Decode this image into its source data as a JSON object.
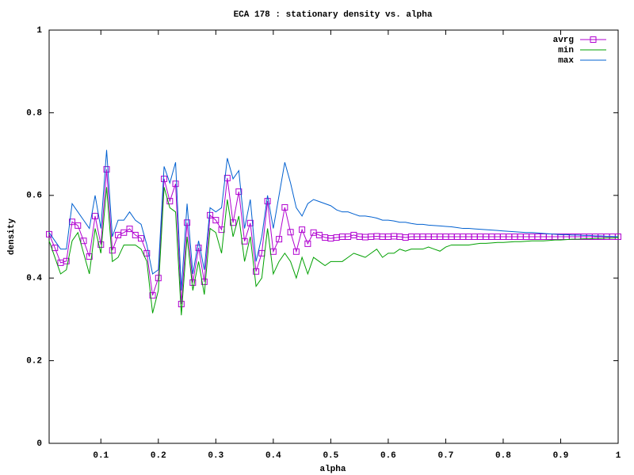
{
  "chart_data": {
    "type": "line",
    "title": "ECA 178 : stationary density vs. alpha",
    "xlabel": "alpha",
    "ylabel": "density",
    "x": [
      0.01,
      0.02,
      0.03,
      0.04,
      0.05,
      0.06,
      0.07,
      0.08,
      0.09,
      0.1,
      0.11,
      0.12,
      0.13,
      0.14,
      0.15,
      0.16,
      0.17,
      0.18,
      0.19,
      0.2,
      0.21,
      0.22,
      0.23,
      0.24,
      0.25,
      0.26,
      0.27,
      0.28,
      0.29,
      0.3,
      0.31,
      0.32,
      0.33,
      0.34,
      0.35,
      0.36,
      0.37,
      0.38,
      0.39,
      0.4,
      0.41,
      0.42,
      0.43,
      0.44,
      0.45,
      0.46,
      0.47,
      0.48,
      0.49,
      0.5,
      0.51,
      0.52,
      0.53,
      0.54,
      0.55,
      0.56,
      0.57,
      0.58,
      0.59,
      0.6,
      0.61,
      0.62,
      0.63,
      0.64,
      0.65,
      0.66,
      0.67,
      0.68,
      0.69,
      0.7,
      0.71,
      0.72,
      0.73,
      0.74,
      0.75,
      0.76,
      0.77,
      0.78,
      0.79,
      0.8,
      0.81,
      0.82,
      0.83,
      0.84,
      0.85,
      0.86,
      0.87,
      0.88,
      0.89,
      0.9,
      0.91,
      0.92,
      0.93,
      0.94,
      0.95,
      0.96,
      0.97,
      0.98,
      0.99,
      1
    ],
    "series": [
      {
        "name": "avrg",
        "color": "#b000d0",
        "marker": "square",
        "values": [
          0.506,
          0.473,
          0.437,
          0.441,
          0.536,
          0.527,
          0.49,
          0.452,
          0.55,
          0.481,
          0.663,
          0.467,
          0.504,
          0.51,
          0.519,
          0.504,
          0.496,
          0.46,
          0.358,
          0.4,
          0.64,
          0.586,
          0.628,
          0.337,
          0.534,
          0.389,
          0.473,
          0.391,
          0.552,
          0.54,
          0.517,
          0.642,
          0.534,
          0.609,
          0.489,
          0.533,
          0.416,
          0.46,
          0.586,
          0.464,
          0.494,
          0.571,
          0.511,
          0.464,
          0.517,
          0.483,
          0.51,
          0.504,
          0.498,
          0.496,
          0.498,
          0.5,
          0.5,
          0.504,
          0.5,
          0.499,
          0.5,
          0.501,
          0.5,
          0.5,
          0.501,
          0.5,
          0.498,
          0.5,
          0.5,
          0.5,
          0.5,
          0.5,
          0.5,
          0.5,
          0.5,
          0.5,
          0.5,
          0.5,
          0.5,
          0.5,
          0.5,
          0.5,
          0.5,
          0.5,
          0.5,
          0.5,
          0.5,
          0.5,
          0.5,
          0.5,
          0.5,
          0.5,
          0.5,
          0.5,
          0.5,
          0.5,
          0.5,
          0.5,
          0.5,
          0.5,
          0.5,
          0.5,
          0.5,
          0.5
        ]
      },
      {
        "name": "min",
        "color": "#00a000",
        "values": [
          0.49,
          0.45,
          0.41,
          0.42,
          0.49,
          0.51,
          0.46,
          0.41,
          0.52,
          0.46,
          0.62,
          0.44,
          0.45,
          0.48,
          0.48,
          0.48,
          0.47,
          0.44,
          0.315,
          0.37,
          0.62,
          0.57,
          0.56,
          0.31,
          0.5,
          0.37,
          0.44,
          0.36,
          0.52,
          0.51,
          0.46,
          0.59,
          0.5,
          0.55,
          0.44,
          0.5,
          0.38,
          0.4,
          0.52,
          0.41,
          0.44,
          0.46,
          0.44,
          0.4,
          0.45,
          0.41,
          0.45,
          0.44,
          0.43,
          0.44,
          0.44,
          0.44,
          0.45,
          0.46,
          0.455,
          0.45,
          0.46,
          0.47,
          0.45,
          0.46,
          0.46,
          0.47,
          0.465,
          0.47,
          0.47,
          0.47,
          0.475,
          0.47,
          0.465,
          0.475,
          0.48,
          0.48,
          0.48,
          0.48,
          0.482,
          0.484,
          0.484,
          0.485,
          0.486,
          0.486,
          0.487,
          0.488,
          0.488,
          0.489,
          0.49,
          0.49,
          0.49,
          0.491,
          0.492,
          0.492,
          0.493,
          0.494,
          0.494,
          0.495,
          0.495,
          0.496,
          0.496,
          0.497,
          0.497,
          0.498
        ]
      },
      {
        "name": "max",
        "color": "#0060d0",
        "values": [
          0.51,
          0.49,
          0.47,
          0.47,
          0.58,
          0.56,
          0.54,
          0.52,
          0.6,
          0.52,
          0.71,
          0.5,
          0.54,
          0.54,
          0.56,
          0.54,
          0.53,
          0.48,
          0.41,
          0.42,
          0.67,
          0.63,
          0.68,
          0.37,
          0.58,
          0.41,
          0.49,
          0.42,
          0.57,
          0.56,
          0.57,
          0.69,
          0.64,
          0.66,
          0.52,
          0.59,
          0.44,
          0.5,
          0.6,
          0.52,
          0.6,
          0.68,
          0.63,
          0.57,
          0.55,
          0.58,
          0.59,
          0.585,
          0.58,
          0.575,
          0.565,
          0.56,
          0.56,
          0.555,
          0.55,
          0.55,
          0.548,
          0.545,
          0.54,
          0.54,
          0.538,
          0.535,
          0.535,
          0.532,
          0.53,
          0.53,
          0.528,
          0.527,
          0.526,
          0.525,
          0.524,
          0.522,
          0.52,
          0.52,
          0.519,
          0.518,
          0.517,
          0.516,
          0.515,
          0.514,
          0.513,
          0.512,
          0.511,
          0.51,
          0.51,
          0.509,
          0.508,
          0.507,
          0.506,
          0.505,
          0.505,
          0.504,
          0.504,
          0.503,
          0.503,
          0.502,
          0.502,
          0.501,
          0.501,
          0.5
        ]
      }
    ],
    "xlim": [
      0.01,
      1
    ],
    "ylim": [
      0,
      1
    ],
    "xticks": [
      0.1,
      0.2,
      0.3,
      0.4,
      0.5,
      0.6,
      0.7,
      0.8,
      0.9,
      1
    ],
    "yticks": [
      0,
      0.2,
      0.4,
      0.6,
      0.8,
      1
    ],
    "grid": false,
    "legend": "top-right"
  }
}
